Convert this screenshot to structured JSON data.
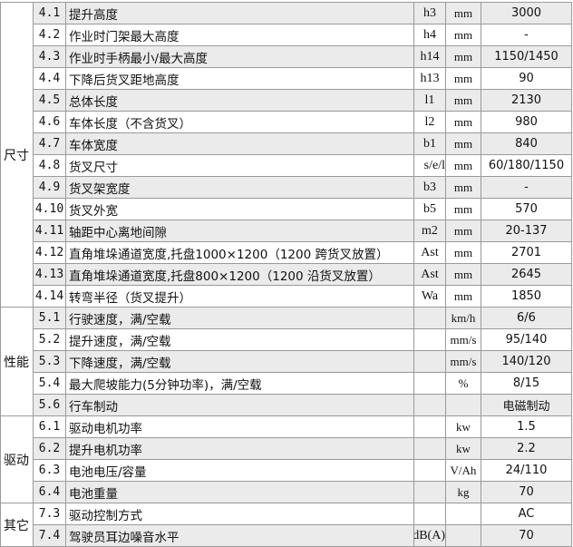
{
  "groups": {
    "size": "尺寸",
    "performance": "性能",
    "drive": "驱动",
    "other": "其它"
  },
  "rows": [
    {
      "no": "4.1",
      "desc": "提升高度",
      "sym": "h3",
      "unit": "mm",
      "val": "3000"
    },
    {
      "no": "4.2",
      "desc": "作业时门架最大高度",
      "sym": "h4",
      "unit": "mm",
      "val": "-"
    },
    {
      "no": "4.3",
      "desc": "作业时手柄最小/最大高度",
      "sym": "h14",
      "unit": "mm",
      "val": "1150/1450"
    },
    {
      "no": "4.4",
      "desc": "下降后货叉距地高度",
      "sym": "h13",
      "unit": "mm",
      "val": "90"
    },
    {
      "no": "4.5",
      "desc": "总体长度",
      "sym": "l1",
      "unit": "mm",
      "val": "2130"
    },
    {
      "no": "4.6",
      "desc": "车体长度（不含货叉）",
      "sym": "l2",
      "unit": "mm",
      "val": "980"
    },
    {
      "no": "4.7",
      "desc": "车体宽度",
      "sym": "b1",
      "unit": "mm",
      "val": "840"
    },
    {
      "no": "4.8",
      "desc": "货叉尺寸",
      "sym": "s/e/l",
      "unit": "mm",
      "val": "60/180/1150"
    },
    {
      "no": "4.9",
      "desc": "货叉架宽度",
      "sym": "b3",
      "unit": "mm",
      "val": "-"
    },
    {
      "no": "4.10",
      "desc": "货叉外宽",
      "sym": "b5",
      "unit": "mm",
      "val": "570"
    },
    {
      "no": "4.11",
      "desc": "轴距中心离地间隙",
      "sym": "m2",
      "unit": "mm",
      "val": "20-137"
    },
    {
      "no": "4.12",
      "desc": "直角堆垛通道宽度,托盘1000×1200（1200 跨货叉放置）",
      "sym": "Ast",
      "unit": "mm",
      "val": "2701"
    },
    {
      "no": "4.13",
      "desc": "直角堆垛通道宽度,托盘800×1200（1200 沿货叉放置）",
      "sym": "Ast",
      "unit": "mm",
      "val": "2645"
    },
    {
      "no": "4.14",
      "desc": "转弯半径（货叉提升）",
      "sym": "Wa",
      "unit": "mm",
      "val": "1850"
    },
    {
      "no": "5.1",
      "desc": "行驶速度，满/空载",
      "sym": "",
      "unit": "km/h",
      "val": "6/6"
    },
    {
      "no": "5.2",
      "desc": "提升速度，满/空载",
      "sym": "",
      "unit": "mm/s",
      "val": "95/140"
    },
    {
      "no": "5.3",
      "desc": "下降速度，满/空载",
      "sym": "",
      "unit": "mm/s",
      "val": "140/120"
    },
    {
      "no": "5.4",
      "desc": "最大爬坡能力(5分钟功率)，满/空载",
      "sym": "",
      "unit": "%",
      "val": "8/15"
    },
    {
      "no": "5.6",
      "desc": "行车制动",
      "sym": "",
      "unit": "",
      "val": "电磁制动"
    },
    {
      "no": "6.1",
      "desc": "驱动电机功率",
      "sym": "",
      "unit": "kw",
      "val": "1.5"
    },
    {
      "no": "6.2",
      "desc": "提升电机功率",
      "sym": "",
      "unit": "kw",
      "val": "2.2"
    },
    {
      "no": "6.3",
      "desc": "电池电压/容量",
      "sym": "",
      "unit": "V/Ah",
      "val": "24/110"
    },
    {
      "no": "6.4",
      "desc": "电池重量",
      "sym": "",
      "unit": "kg",
      "val": "70"
    },
    {
      "no": "7.3",
      "desc": "驱动控制方式",
      "sym": "",
      "unit": "",
      "val": "AC"
    },
    {
      "no": "7.4",
      "desc": "驾驶员耳边噪音水平",
      "sym": "dB(A)",
      "unit": "",
      "val": "70"
    }
  ],
  "colors": {
    "shade": "#ebebeb",
    "border": "#9a9a9a"
  }
}
